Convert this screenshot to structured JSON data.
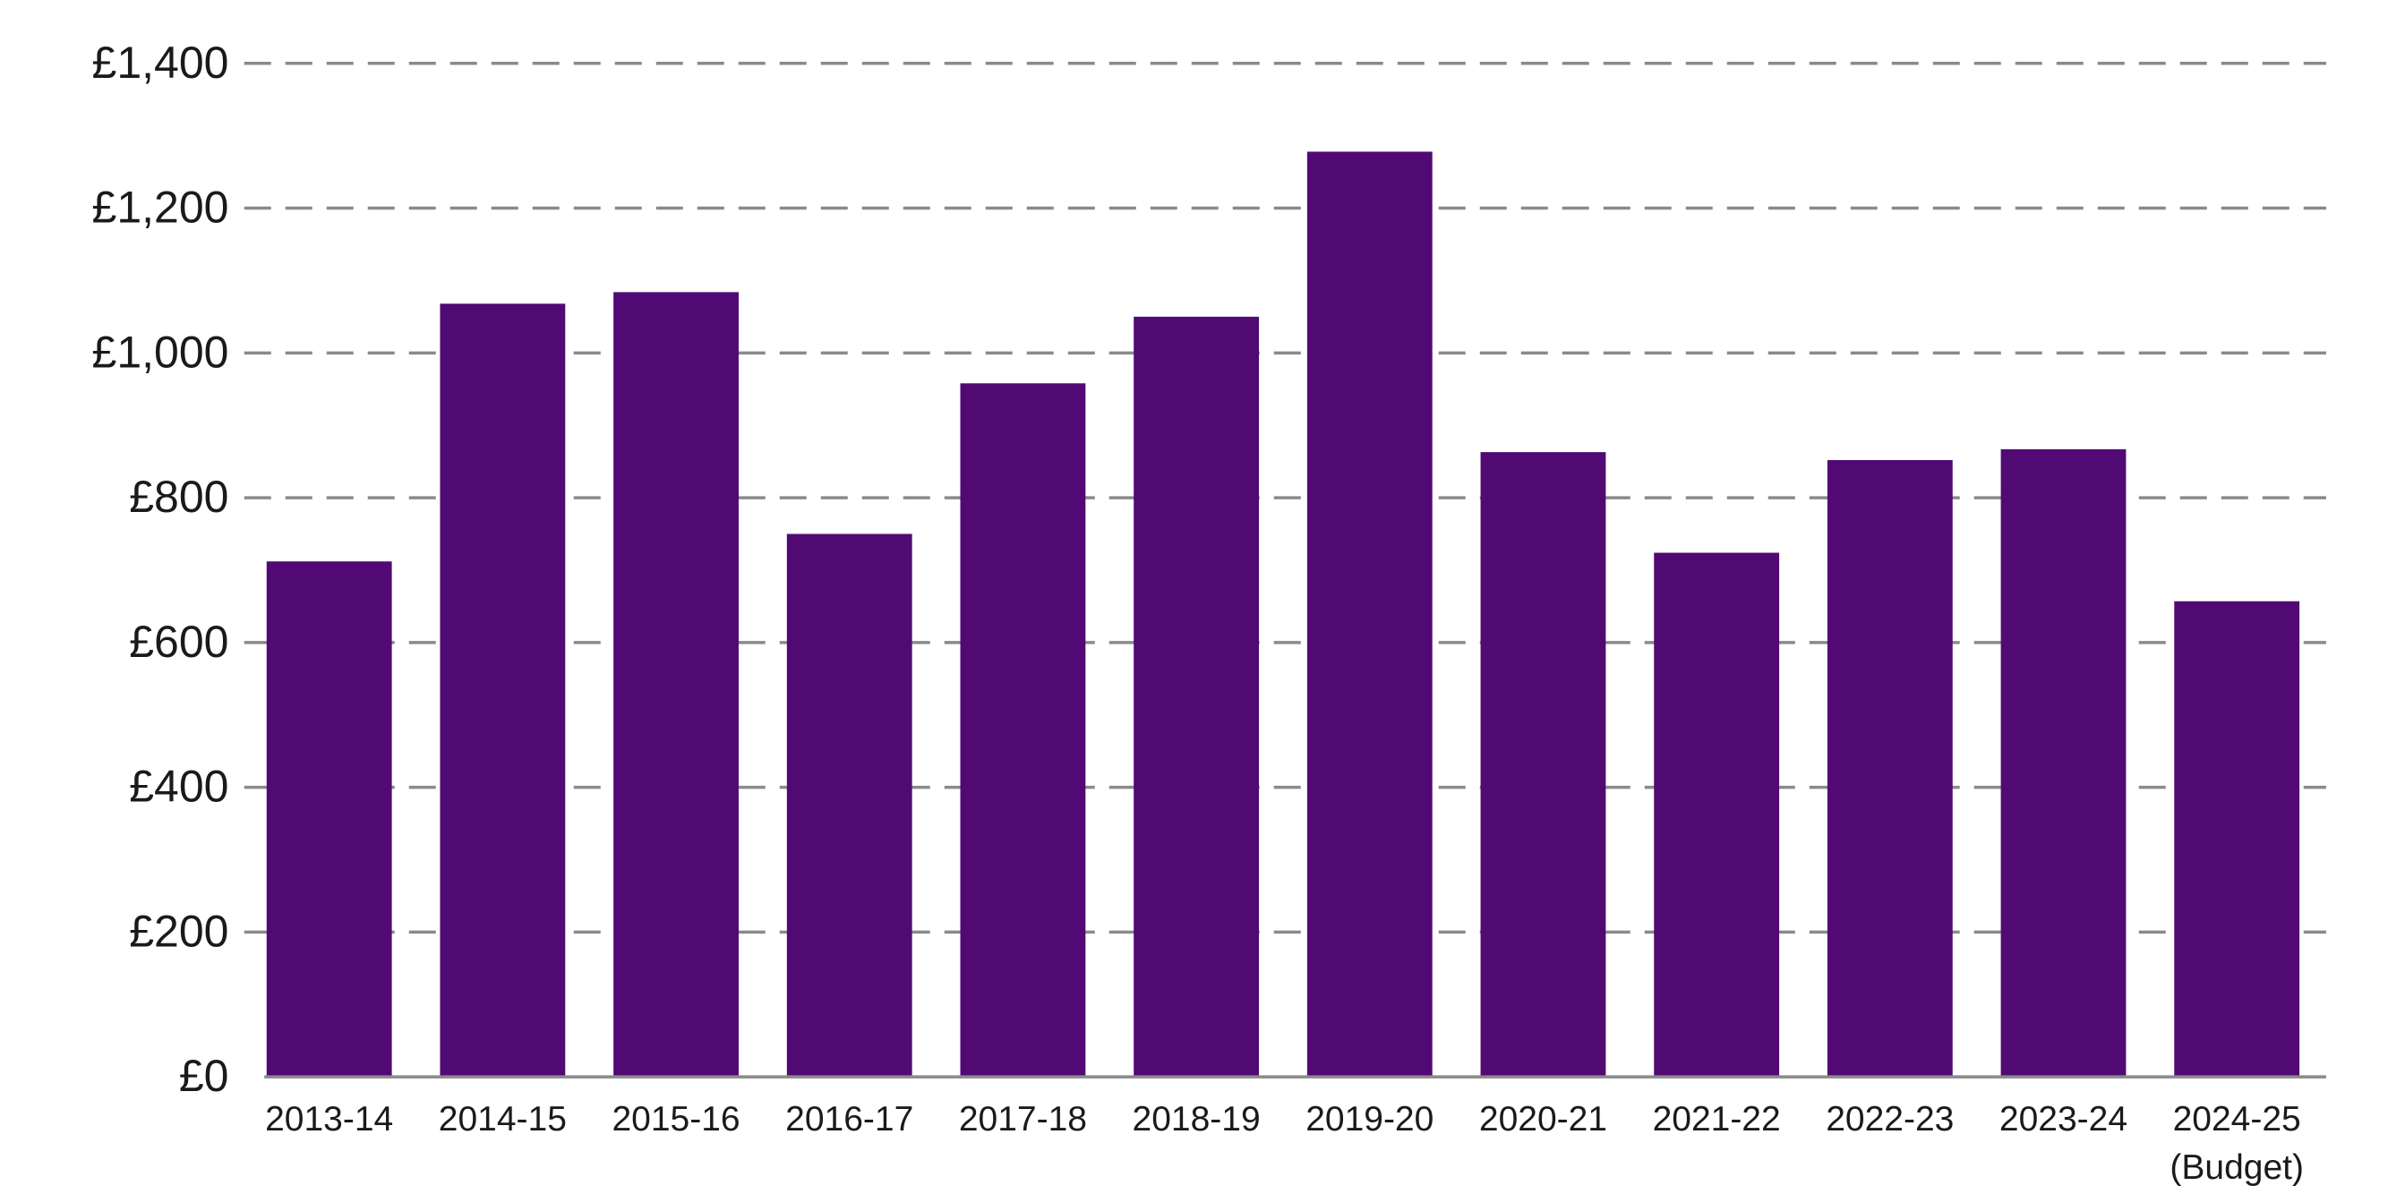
{
  "chart_data": {
    "type": "bar",
    "title": "",
    "xlabel": "",
    "ylabel": "",
    "ylim": [
      0,
      1400
    ],
    "yticks": [
      0,
      200,
      400,
      600,
      800,
      1000,
      1200,
      1400
    ],
    "ytick_labels": [
      "£0",
      "£200",
      "£400",
      "£600",
      "£800",
      "£1,000",
      "£1,200",
      "£1,400"
    ],
    "categories": [
      [
        "2013-14"
      ],
      [
        "2014-15"
      ],
      [
        "2015-16"
      ],
      [
        "2016-17"
      ],
      [
        "2017-18"
      ],
      [
        "2018-19"
      ],
      [
        "2019-20"
      ],
      [
        "2020-21"
      ],
      [
        "2021-22"
      ],
      [
        "2022-23"
      ],
      [
        "2023-24"
      ],
      [
        "2024-25",
        "(Budget)"
      ]
    ],
    "values": [
      712,
      1068,
      1084,
      750,
      958,
      1050,
      1278,
      863,
      724,
      852,
      867,
      657
    ],
    "grid": true,
    "gridline_style": "dashed",
    "legend": "none",
    "colors": {
      "bar": "#510a73",
      "grid": "#8a8a8a",
      "text": "#1a1a1a"
    }
  }
}
